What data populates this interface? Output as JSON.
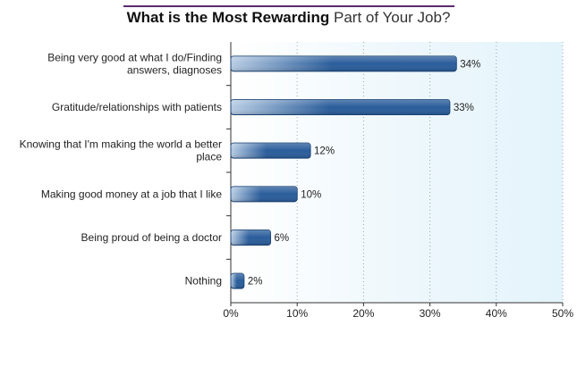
{
  "title": {
    "bold": "What is the Most Rewarding",
    "rest": "Part of Your Job?"
  },
  "chart_data": {
    "type": "bar",
    "orientation": "horizontal",
    "categories": [
      "Being very good at what I do/Finding answers, diagnoses",
      "Gratitude/relationships with patients",
      "Knowing that I'm making the world a better place",
      "Making good money at a job that I like",
      "Being proud of being a doctor",
      "Nothing"
    ],
    "values": [
      34,
      33,
      12,
      10,
      6,
      2
    ],
    "value_labels": [
      "34%",
      "33%",
      "12%",
      "10%",
      "6%",
      "2%"
    ],
    "xlim": [
      0,
      50
    ],
    "x_ticks": [
      0,
      10,
      20,
      30,
      40,
      50
    ],
    "x_tick_labels": [
      "0%",
      "10%",
      "20%",
      "30%",
      "40%",
      "50%"
    ],
    "grid": "vertical dotted",
    "colors": {
      "bar": "#2a5d9b",
      "bar_light": "#b8cde4",
      "plot_bg": "#edf7fc",
      "grid": "#9aa7b0",
      "title_rule": "#5b2a6e"
    }
  }
}
